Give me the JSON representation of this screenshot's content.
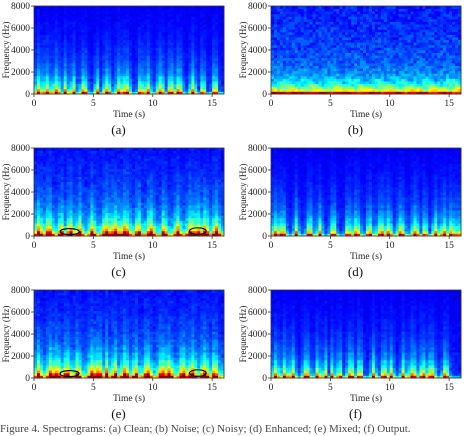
{
  "chart_data": [
    {
      "type": "heatmap",
      "panel_label": "(a)",
      "xlabel": "Time (s)",
      "ylabel": "Frequency (Hz)",
      "xlim": [
        0,
        16
      ],
      "ylim": [
        0,
        8000
      ],
      "xticks": [
        0,
        5,
        10,
        15
      ],
      "yticks": [
        0,
        2000,
        4000,
        6000,
        8000
      ],
      "colormap": "jet",
      "pattern": "speech",
      "marked_regions": []
    },
    {
      "type": "heatmap",
      "panel_label": "(b)",
      "xlabel": "Time (s)",
      "ylabel": "Frequency (Hz)",
      "xlim": [
        0,
        16
      ],
      "ylim": [
        0,
        8000
      ],
      "xticks": [
        0,
        5,
        10,
        15
      ],
      "yticks": [
        0,
        2000,
        4000,
        6000,
        8000
      ],
      "colormap": "jet",
      "pattern": "noise",
      "marked_regions": []
    },
    {
      "type": "heatmap",
      "panel_label": "(c)",
      "xlabel": "Time (s)",
      "ylabel": "Frequency (Hz)",
      "xlim": [
        0,
        16
      ],
      "ylim": [
        0,
        8000
      ],
      "xticks": [
        0,
        5,
        10,
        15
      ],
      "yticks": [
        0,
        2000,
        4000,
        6000,
        8000
      ],
      "colormap": "jet",
      "pattern": "mixed",
      "marked_regions": [
        {
          "t_center": 3.0,
          "f_center": 400,
          "t_halfwidth": 0.8,
          "f_halfwidth": 280
        },
        {
          "t_center": 13.8,
          "f_center": 450,
          "t_halfwidth": 0.7,
          "f_halfwidth": 300
        }
      ]
    },
    {
      "type": "heatmap",
      "panel_label": "(d)",
      "xlabel": "Time (s)",
      "ylabel": "Frequency (Hz)",
      "xlim": [
        0,
        16
      ],
      "ylim": [
        0,
        8000
      ],
      "xticks": [
        0,
        5,
        10,
        15
      ],
      "yticks": [
        0,
        2000,
        4000,
        6000,
        8000
      ],
      "colormap": "jet",
      "pattern": "speech",
      "marked_regions": []
    },
    {
      "type": "heatmap",
      "panel_label": "(e)",
      "xlabel": "Time (s)",
      "ylabel": "Frequency (Hz)",
      "xlim": [
        0,
        16
      ],
      "ylim": [
        0,
        8000
      ],
      "xticks": [
        0,
        5,
        10,
        15
      ],
      "yticks": [
        0,
        2000,
        4000,
        6000,
        8000
      ],
      "colormap": "jet",
      "pattern": "mixed",
      "marked_regions": [
        {
          "t_center": 3.0,
          "f_center": 400,
          "t_halfwidth": 0.8,
          "f_halfwidth": 280
        },
        {
          "t_center": 13.8,
          "f_center": 450,
          "t_halfwidth": 0.7,
          "f_halfwidth": 300
        }
      ]
    },
    {
      "type": "heatmap",
      "panel_label": "(f)",
      "xlabel": "Time (s)",
      "ylabel": "Frequency (Hz)",
      "xlim": [
        0,
        16
      ],
      "ylim": [
        0,
        8000
      ],
      "xticks": [
        0,
        5,
        10,
        15
      ],
      "yticks": [
        0,
        2000,
        4000,
        6000,
        8000
      ],
      "colormap": "jet",
      "pattern": "speech",
      "marked_regions": []
    }
  ],
  "colors": {
    "background_low": "#00007a",
    "mid": "#1e90ff",
    "high": "#ffd700",
    "peak": "#ff3000",
    "ellipse": "#000000"
  },
  "caption": "Figure 4. Spectrograms: (a) Clean; (b) Noise; (c) Noisy; (d) Enhanced; (e) Mixed; (f) Output."
}
